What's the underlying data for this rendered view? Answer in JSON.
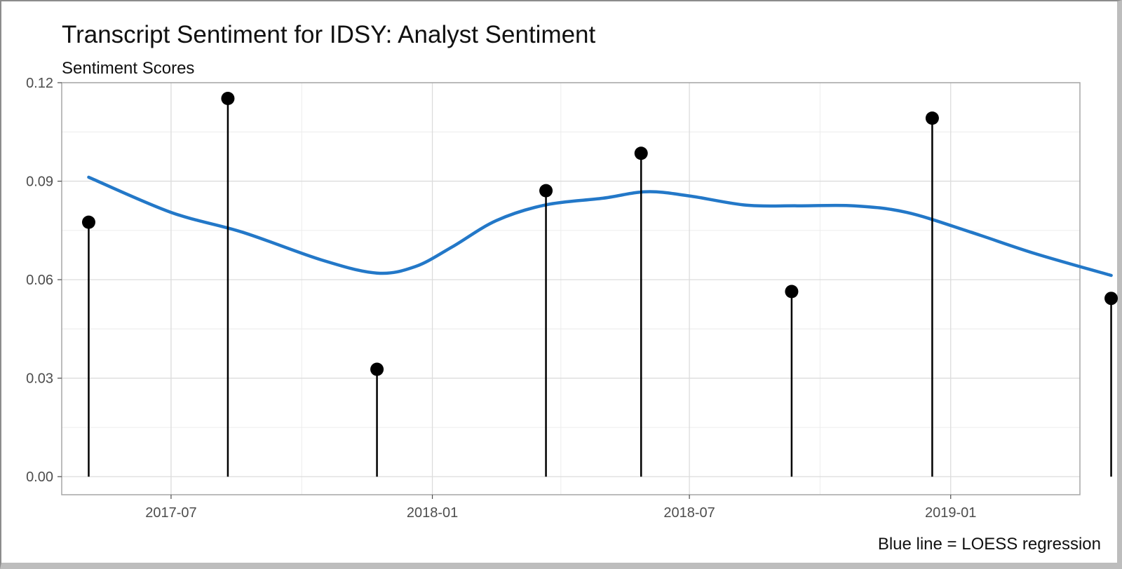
{
  "chart_data": {
    "type": "lollipop",
    "title": "Transcript Sentiment for IDSY: Analyst Sentiment",
    "subtitle": "Sentiment Scores",
    "caption": "Blue line = LOESS regression",
    "xlabel": "",
    "ylabel": "",
    "ylim": [
      -0.0055,
      0.12
    ],
    "xlim": [
      "2017-04-15",
      "2019-04-02"
    ],
    "y_ticks": [
      0.0,
      0.03,
      0.06,
      0.09,
      0.12
    ],
    "y_tick_labels": [
      "0.00",
      "0.03",
      "0.06",
      "0.09",
      "0.12"
    ],
    "x_ticks": [
      "2017-07-01",
      "2018-01-01",
      "2018-07-01",
      "2019-01-01"
    ],
    "x_tick_labels": [
      "2017-07",
      "2018-01",
      "2018-07",
      "2019-01"
    ],
    "grid": true,
    "points": [
      {
        "x": "2017-05-04",
        "y": 0.0775
      },
      {
        "x": "2017-08-10",
        "y": 0.1152
      },
      {
        "x": "2017-11-23",
        "y": 0.0327
      },
      {
        "x": "2018-03-22",
        "y": 0.0871
      },
      {
        "x": "2018-05-28",
        "y": 0.0985
      },
      {
        "x": "2018-09-11",
        "y": 0.0564
      },
      {
        "x": "2018-12-19",
        "y": 0.1092
      },
      {
        "x": "2019-04-24",
        "y": 0.0543
      }
    ],
    "loess": [
      {
        "x": "2017-05-04",
        "y": 0.0912
      },
      {
        "x": "2017-07-01",
        "y": 0.0805
      },
      {
        "x": "2017-08-20",
        "y": 0.0745
      },
      {
        "x": "2017-10-15",
        "y": 0.066
      },
      {
        "x": "2017-11-23",
        "y": 0.062
      },
      {
        "x": "2017-12-20",
        "y": 0.064
      },
      {
        "x": "2018-01-15",
        "y": 0.07
      },
      {
        "x": "2018-02-15",
        "y": 0.078
      },
      {
        "x": "2018-03-22",
        "y": 0.0828
      },
      {
        "x": "2018-05-01",
        "y": 0.0848
      },
      {
        "x": "2018-06-01",
        "y": 0.0868
      },
      {
        "x": "2018-07-01",
        "y": 0.0855
      },
      {
        "x": "2018-08-10",
        "y": 0.0827
      },
      {
        "x": "2018-09-15",
        "y": 0.0825
      },
      {
        "x": "2018-10-25",
        "y": 0.0825
      },
      {
        "x": "2018-12-01",
        "y": 0.0805
      },
      {
        "x": "2019-01-15",
        "y": 0.0745
      },
      {
        "x": "2019-03-01",
        "y": 0.068
      },
      {
        "x": "2019-04-24",
        "y": 0.0613
      }
    ],
    "colors": {
      "loess": "#2378C8",
      "points": "#000000",
      "grid": "#dcdcdc",
      "panel_border": "#a6a6a6"
    }
  }
}
